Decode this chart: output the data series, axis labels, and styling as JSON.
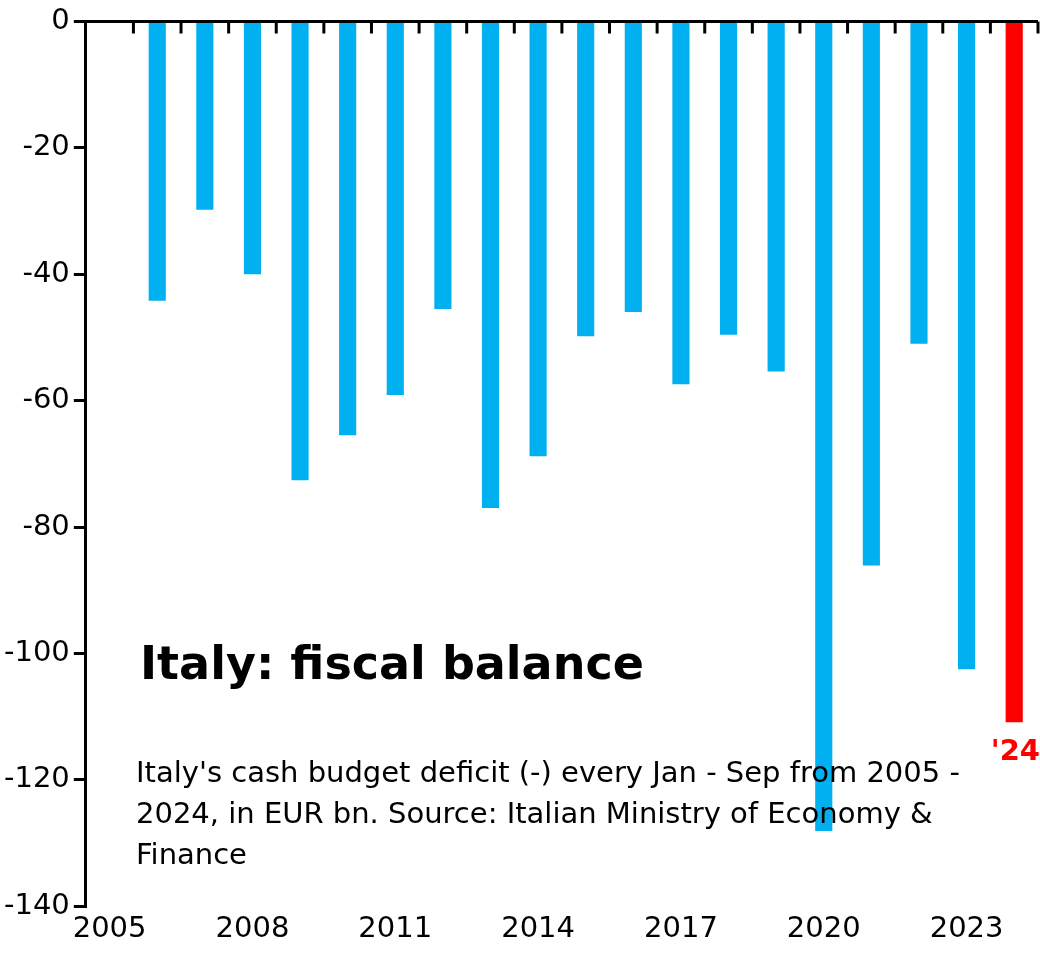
{
  "chart_data": {
    "type": "bar",
    "title": "Italy: fiscal balance",
    "annotations": [
      "Italy's cash budget deficit (-) every Jan - Sep from 2005 - 2024, in EUR bn. Source: Italian Ministry of Economy & Finance",
      {
        "text": "'24",
        "y": -110.9
      }
    ],
    "categories": [
      "2005",
      null,
      null,
      "2008",
      null,
      null,
      "2011",
      null,
      null,
      "2014",
      null,
      null,
      "2017",
      null,
      null,
      "2020",
      null,
      null,
      "2023",
      null
    ],
    "values": [
      null,
      -44.2,
      -29.8,
      -40,
      -72.6,
      -65.5,
      -59.1,
      -45.5,
      -77,
      -68.8,
      -49.8,
      -46,
      -57.4,
      -49.6,
      -55.4,
      -128.1,
      -86.1,
      -51,
      -102.5,
      -110.9
    ],
    "colors": [
      "#00b0f0",
      "#00b0f0",
      "#00b0f0",
      "#00b0f0",
      "#00b0f0",
      "#00b0f0",
      "#00b0f0",
      "#00b0f0",
      "#00b0f0",
      "#00b0f0",
      "#00b0f0",
      "#00b0f0",
      "#00b0f0",
      "#00b0f0",
      "#00b0f0",
      "#00b0f0",
      "#00b0f0",
      "#00b0f0",
      "#00b0f0",
      "#ff0000"
    ],
    "ylim": [
      -140,
      0
    ],
    "yticks": [
      0,
      -20,
      -40,
      -60,
      -80,
      -100,
      -120,
      -140
    ],
    "grid": false,
    "legend": false
  }
}
